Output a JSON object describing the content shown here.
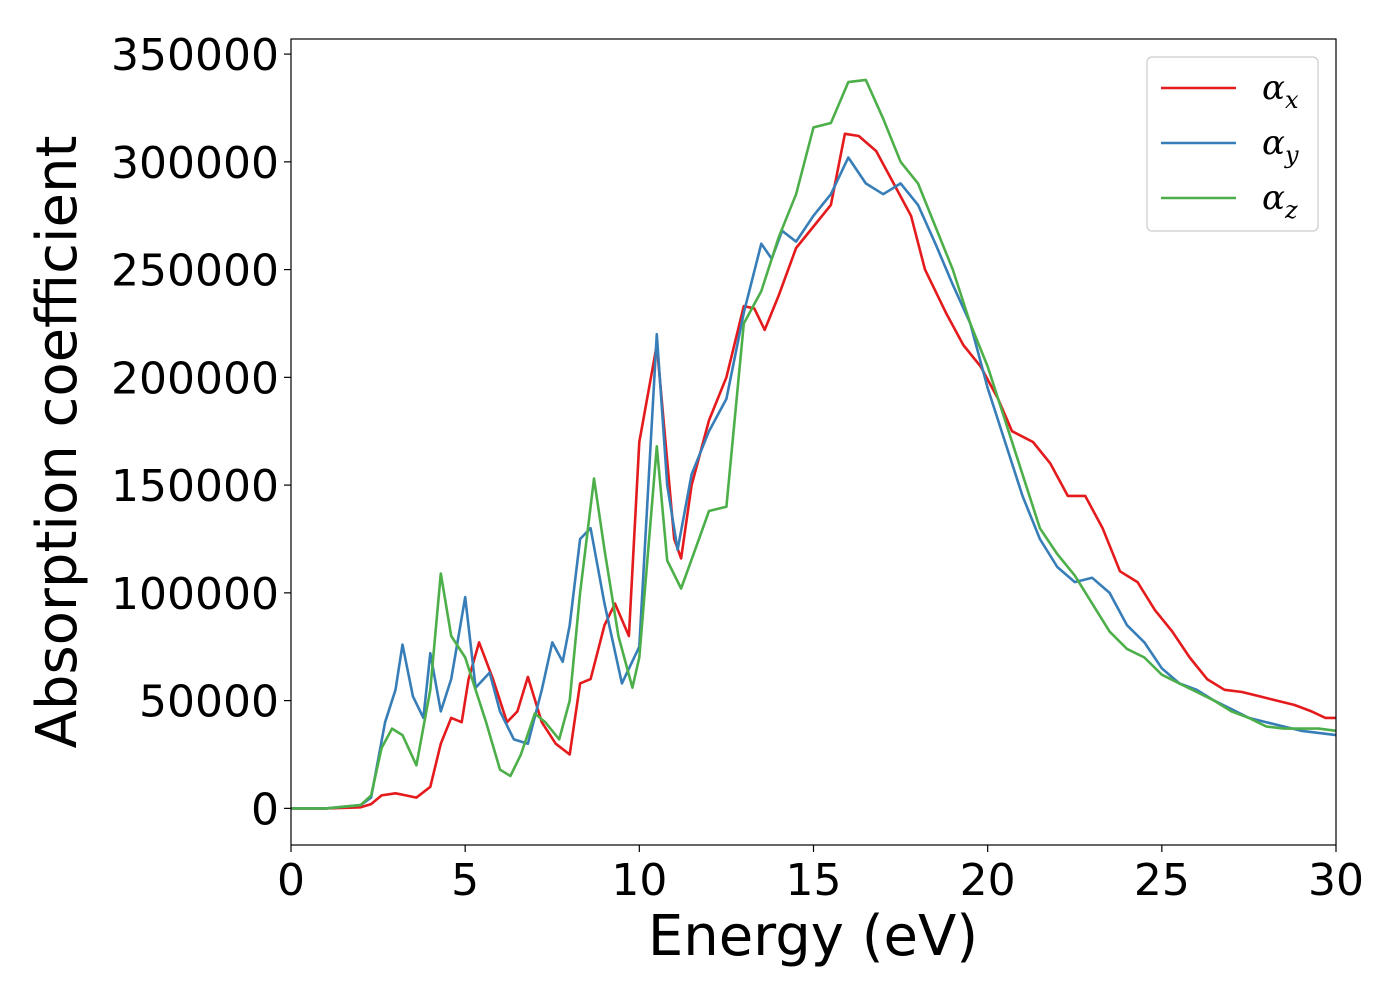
{
  "chart_data": {
    "type": "line",
    "xlabel": "Energy (eV)",
    "ylabel": "Absorption coefficient",
    "xlim": [
      0,
      30
    ],
    "ylim": [
      -17000,
      357000
    ],
    "xticks": [
      0,
      5,
      10,
      15,
      20,
      25,
      30
    ],
    "yticks": [
      0,
      50000,
      100000,
      150000,
      200000,
      250000,
      300000,
      350000
    ],
    "grid": false,
    "legend_position": "top-right",
    "series": [
      {
        "name": "αx",
        "legend_symbol": "α",
        "legend_subscript": "x",
        "color": "#e41a1c",
        "x": [
          0,
          1,
          2,
          2.3,
          2.6,
          3,
          3.3,
          3.6,
          4,
          4.3,
          4.6,
          4.9,
          5.1,
          5.4,
          5.8,
          6.2,
          6.5,
          6.8,
          7.2,
          7.6,
          8,
          8.3,
          8.6,
          9,
          9.3,
          9.7,
          10,
          10.5,
          11,
          11.2,
          11.5,
          12,
          12.5,
          13,
          13.3,
          13.6,
          14,
          14.5,
          15,
          15.5,
          15.9,
          16.3,
          16.8,
          17.3,
          17.8,
          18.2,
          18.8,
          19.3,
          19.8,
          20.3,
          20.7,
          21.3,
          21.8,
          22.3,
          22.8,
          23.3,
          23.8,
          24.3,
          24.8,
          25.3,
          25.8,
          26.3,
          26.8,
          27.3,
          27.8,
          28.3,
          28.8,
          29.3,
          29.7,
          30
        ],
        "y": [
          0,
          0,
          500,
          2000,
          6000,
          7000,
          6000,
          5000,
          10000,
          30000,
          42000,
          40000,
          60000,
          77000,
          60000,
          40000,
          45000,
          61000,
          40000,
          30000,
          25000,
          58000,
          60000,
          85000,
          95000,
          80000,
          170000,
          215000,
          125000,
          116000,
          150000,
          180000,
          200000,
          233000,
          232000,
          222000,
          238000,
          260000,
          270000,
          280000,
          313000,
          312000,
          305000,
          290000,
          275000,
          250000,
          230000,
          215000,
          205000,
          190000,
          175000,
          170000,
          160000,
          145000,
          145000,
          130000,
          110000,
          105000,
          92000,
          82000,
          70000,
          60000,
          55000,
          54000,
          52000,
          50000,
          48000,
          45000,
          42000,
          42000
        ]
      },
      {
        "name": "αy",
        "legend_symbol": "α",
        "legend_subscript": "y",
        "color": "#377eb8",
        "x": [
          0,
          1,
          2,
          2.3,
          2.7,
          3,
          3.2,
          3.5,
          3.8,
          4,
          4.3,
          4.6,
          5,
          5.3,
          5.7,
          6,
          6.4,
          6.8,
          7.2,
          7.5,
          7.8,
          8,
          8.3,
          8.6,
          9,
          9.5,
          10,
          10.5,
          10.8,
          11.1,
          11.5,
          12,
          12.5,
          13,
          13.5,
          13.8,
          14.1,
          14.5,
          15,
          15.5,
          16,
          16.5,
          17,
          17.5,
          18,
          18.5,
          19,
          19.5,
          20,
          20.5,
          21,
          21.5,
          22,
          22.5,
          23,
          23.5,
          24,
          24.5,
          25,
          25.5,
          26,
          26.5,
          27,
          27.5,
          28,
          28.5,
          29,
          29.5,
          30
        ],
        "y": [
          0,
          0,
          1500,
          5000,
          40000,
          55000,
          76000,
          52000,
          42000,
          72000,
          45000,
          60000,
          98000,
          56000,
          63000,
          45000,
          32000,
          30000,
          55000,
          77000,
          68000,
          85000,
          125000,
          130000,
          95000,
          58000,
          75000,
          220000,
          150000,
          120000,
          155000,
          175000,
          190000,
          230000,
          262000,
          255000,
          268000,
          263000,
          275000,
          285000,
          302000,
          290000,
          285000,
          290000,
          280000,
          262000,
          243000,
          225000,
          195000,
          170000,
          145000,
          125000,
          112000,
          105000,
          107000,
          100000,
          85000,
          77000,
          65000,
          58000,
          55000,
          50000,
          46000,
          42000,
          40000,
          38000,
          36000,
          35000,
          34000
        ]
      },
      {
        "name": "αz",
        "legend_symbol": "α",
        "legend_subscript": "z",
        "color": "#4daf4a",
        "x": [
          0,
          1,
          2,
          2.3,
          2.6,
          2.9,
          3.2,
          3.6,
          4,
          4.3,
          4.6,
          5,
          5.3,
          5.6,
          6,
          6.3,
          6.6,
          7,
          7.3,
          7.7,
          8,
          8.3,
          8.7,
          9,
          9.4,
          9.8,
          10,
          10.5,
          10.8,
          11.2,
          11.6,
          12,
          12.5,
          13,
          13.5,
          14,
          14.5,
          15,
          15.5,
          16,
          16.5,
          17,
          17.5,
          18,
          18.5,
          19,
          19.5,
          20,
          20.5,
          21,
          21.5,
          22,
          22.5,
          23,
          23.5,
          24,
          24.5,
          25,
          25.5,
          26,
          26.5,
          27,
          27.5,
          28,
          28.5,
          29,
          29.5,
          30
        ],
        "y": [
          0,
          0,
          1500,
          6000,
          28000,
          37000,
          34000,
          20000,
          55000,
          109000,
          80000,
          70000,
          55000,
          40000,
          18000,
          15000,
          25000,
          44000,
          40000,
          32000,
          50000,
          100000,
          153000,
          120000,
          80000,
          56000,
          70000,
          168000,
          115000,
          102000,
          120000,
          138000,
          140000,
          225000,
          240000,
          265000,
          285000,
          316000,
          318000,
          337000,
          338000,
          320000,
          300000,
          290000,
          270000,
          250000,
          225000,
          205000,
          180000,
          155000,
          130000,
          118000,
          108000,
          95000,
          82000,
          74000,
          70000,
          62000,
          58000,
          54000,
          50000,
          45000,
          42000,
          38000,
          37000,
          37000,
          37000,
          36000
        ]
      }
    ]
  }
}
